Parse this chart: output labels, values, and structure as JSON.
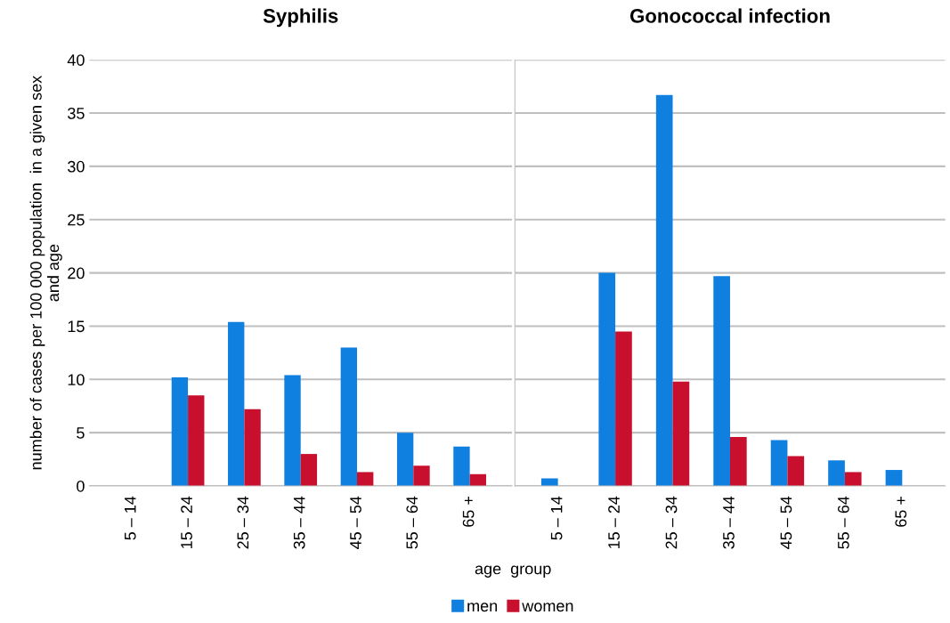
{
  "chart_data": [
    {
      "type": "bar",
      "title": "Syphilis",
      "ylabel": "number of cases per 100 000 population  in a given sex\nand age",
      "xlabel": "age  group",
      "categories": [
        "5 – 14",
        "15 – 24",
        "25 – 34",
        "35 – 44",
        "45 – 54",
        "55 – 64",
        "65 +"
      ],
      "series": [
        {
          "name": "men",
          "color": "#0f7fe0",
          "values": [
            0,
            10.2,
            15.4,
            10.4,
            13.0,
            5.0,
            3.7
          ]
        },
        {
          "name": "women",
          "color": "#c8102e",
          "values": [
            0,
            8.5,
            7.2,
            3.0,
            1.3,
            1.9,
            1.1
          ]
        }
      ],
      "ylim": [
        0,
        40
      ],
      "yticks": [
        0,
        5,
        10,
        15,
        20,
        25,
        30,
        35,
        40
      ],
      "grid": "y",
      "legend": "bottom"
    },
    {
      "type": "bar",
      "title": "Gonococcal infection",
      "categories": [
        "5 – 14",
        "15 – 24",
        "25 – 34",
        "35 – 44",
        "45 – 54",
        "55 – 64",
        "65 +"
      ],
      "series": [
        {
          "color": "#0f7fe0",
          "values": [
            0.7,
            20.0,
            36.7,
            19.7,
            4.3,
            2.4,
            1.5
          ]
        },
        {
          "color": "#c8102e",
          "values": [
            0,
            14.5,
            9.8,
            4.6,
            2.8,
            1.3,
            0
          ]
        }
      ],
      "ylim": [
        0,
        40
      ],
      "yticks": [
        0,
        5,
        10,
        15,
        20,
        25,
        30,
        35,
        40
      ],
      "grid": "y",
      "tick_labels": "x"
    }
  ]
}
